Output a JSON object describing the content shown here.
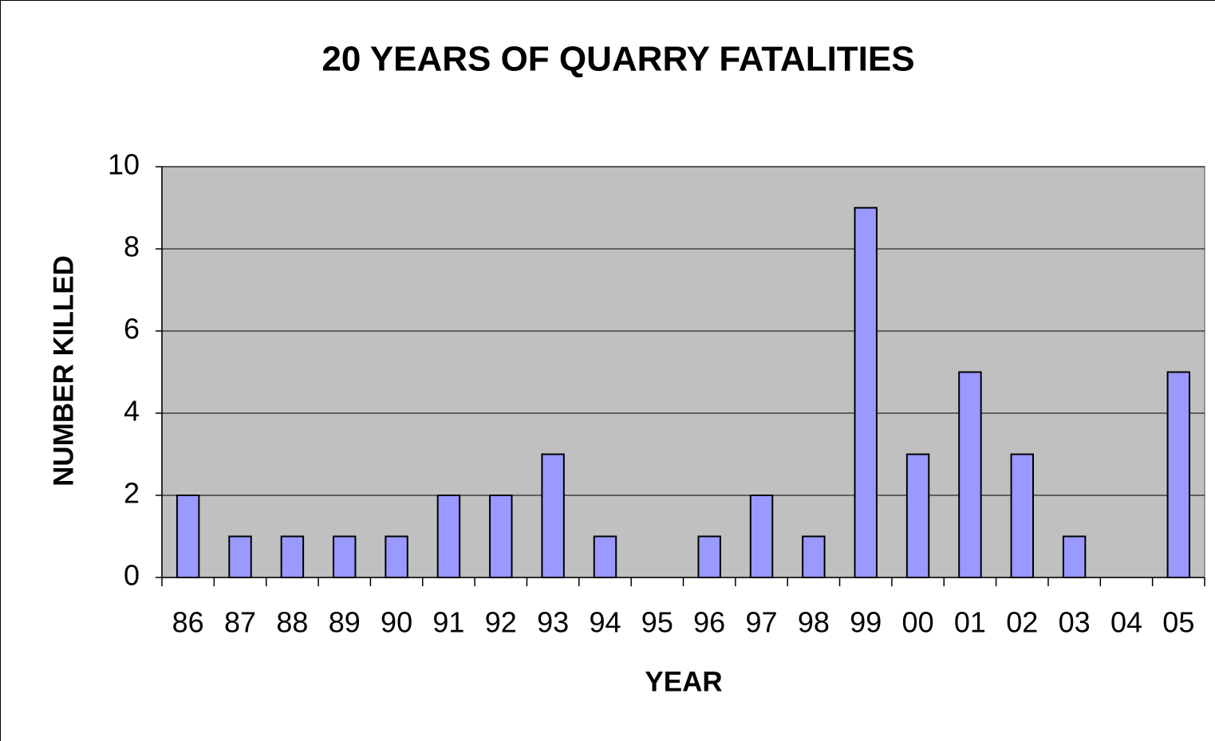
{
  "chart_data": {
    "type": "bar",
    "title": "20 YEARS OF QUARRY FATALITIES",
    "x_label": "YEAR",
    "y_label": "NUMBER KILLED",
    "categories": [
      "86",
      "87",
      "88",
      "89",
      "90",
      "91",
      "92",
      "93",
      "94",
      "95",
      "96",
      "97",
      "98",
      "99",
      "00",
      "01",
      "02",
      "03",
      "04",
      "05"
    ],
    "values": [
      2,
      1,
      1,
      1,
      1,
      2,
      2,
      3,
      1,
      0,
      1,
      2,
      1,
      9,
      3,
      5,
      3,
      1,
      0,
      5
    ],
    "color": "#9999ff",
    "ylim": [
      0,
      10
    ],
    "yticks": [
      0,
      2,
      4,
      6,
      8,
      10
    ],
    "grid": true
  }
}
